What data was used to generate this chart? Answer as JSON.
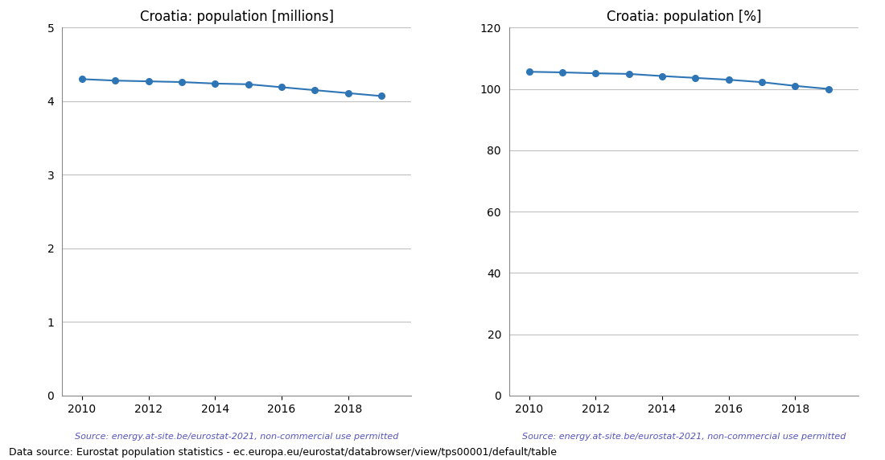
{
  "years": [
    2010,
    2011,
    2012,
    2013,
    2014,
    2015,
    2016,
    2017,
    2018,
    2019
  ],
  "pop_millions": [
    4.3,
    4.28,
    4.27,
    4.26,
    4.24,
    4.23,
    4.19,
    4.15,
    4.11,
    4.07
  ],
  "pop_percent": [
    105.6,
    105.4,
    105.1,
    104.9,
    104.2,
    103.6,
    103.0,
    102.2,
    101.0,
    100.0
  ],
  "title_left": "Croatia: population [millions]",
  "title_right": "Croatia: population [%]",
  "source_text": "Source: energy.at-site.be/eurostat-2021, non-commercial use permitted",
  "bottom_text": "Data source: Eurostat population statistics - ec.europa.eu/eurostat/databrowser/view/tps00001/default/table",
  "line_color": "#2e75b6",
  "source_color": "#5555bb",
  "bottom_text_color": "#000000",
  "ylim_left": [
    0,
    5
  ],
  "ylim_right": [
    0,
    120
  ],
  "yticks_left": [
    0,
    1,
    2,
    3,
    4,
    5
  ],
  "yticks_right": [
    0,
    20,
    40,
    60,
    80,
    100,
    120
  ],
  "xticks": [
    2010,
    2012,
    2014,
    2016,
    2018
  ],
  "grid_color": "#c0c0c0"
}
